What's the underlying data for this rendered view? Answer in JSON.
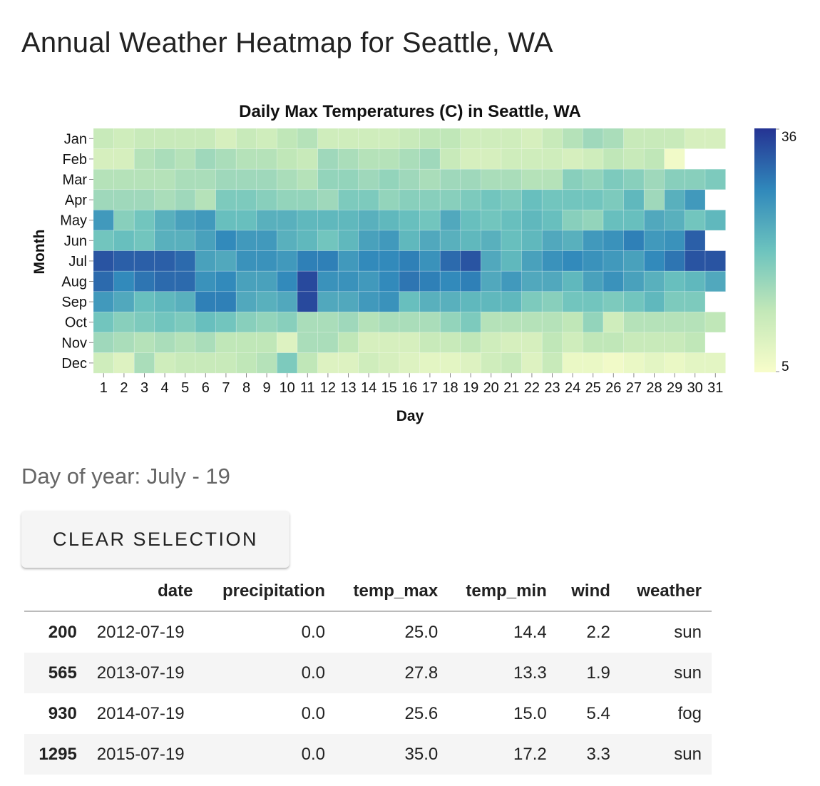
{
  "page": {
    "title": "Annual Weather Heatmap for Seattle, WA",
    "selection_label": "Day of year: July - 19",
    "clear_button_label": "CLEAR SELECTION"
  },
  "chart_data": {
    "type": "heatmap",
    "title": "Daily Max Temperatures (C) in Seattle, WA",
    "xlabel": "Day",
    "ylabel": "Month",
    "x": [
      "1",
      "2",
      "3",
      "4",
      "5",
      "6",
      "7",
      "8",
      "9",
      "10",
      "11",
      "12",
      "13",
      "14",
      "15",
      "16",
      "17",
      "18",
      "19",
      "20",
      "21",
      "22",
      "23",
      "24",
      "25",
      "26",
      "27",
      "28",
      "29",
      "30",
      "31"
    ],
    "y": [
      "Jan",
      "Feb",
      "Mar",
      "Apr",
      "May",
      "Jun",
      "Jul",
      "Aug",
      "Sep",
      "Oct",
      "Nov",
      "Dec"
    ],
    "values": [
      [
        12,
        11,
        12,
        12,
        12,
        12,
        10,
        12,
        11,
        13,
        14,
        11,
        11,
        11,
        11,
        12,
        13,
        13,
        11,
        11,
        11,
        10,
        12,
        14,
        16,
        15,
        12,
        12,
        12,
        10,
        10
      ],
      [
        10,
        10,
        14,
        15,
        14,
        16,
        15,
        14,
        14,
        13,
        12,
        16,
        15,
        14,
        14,
        15,
        16,
        12,
        10,
        10,
        11,
        11,
        11,
        10,
        11,
        13,
        12,
        13,
        6,
        null,
        null
      ],
      [
        14,
        14,
        14,
        14,
        15,
        15,
        16,
        16,
        16,
        15,
        14,
        17,
        17,
        16,
        17,
        16,
        15,
        16,
        16,
        15,
        15,
        14,
        14,
        18,
        17,
        19,
        18,
        16,
        18,
        18,
        19
      ],
      [
        16,
        16,
        16,
        15,
        16,
        14,
        19,
        19,
        18,
        17,
        17,
        16,
        19,
        19,
        17,
        18,
        18,
        18,
        19,
        20,
        19,
        21,
        20,
        20,
        20,
        19,
        22,
        16,
        23,
        26,
        null
      ],
      [
        26,
        18,
        20,
        23,
        25,
        26,
        21,
        21,
        23,
        23,
        22,
        22,
        22,
        23,
        22,
        21,
        20,
        24,
        21,
        20,
        21,
        22,
        21,
        18,
        17,
        21,
        21,
        24,
        23,
        20,
        22
      ],
      [
        20,
        21,
        20,
        23,
        23,
        25,
        28,
        26,
        26,
        23,
        22,
        20,
        22,
        25,
        26,
        22,
        24,
        23,
        22,
        23,
        21,
        22,
        24,
        23,
        26,
        27,
        29,
        26,
        27,
        32,
        null
      ],
      [
        33,
        32,
        32,
        32,
        31,
        25,
        24,
        27,
        27,
        26,
        29,
        29,
        26,
        28,
        28,
        29,
        27,
        31,
        33,
        24,
        22,
        25,
        27,
        28,
        27,
        26,
        25,
        28,
        30,
        33,
        33
      ],
      [
        31,
        28,
        30,
        31,
        31,
        27,
        28,
        25,
        25,
        28,
        34,
        27,
        27,
        26,
        28,
        30,
        29,
        28,
        29,
        24,
        26,
        24,
        24,
        22,
        25,
        27,
        25,
        23,
        21,
        22,
        24
      ],
      [
        26,
        24,
        21,
        22,
        23,
        29,
        29,
        24,
        23,
        24,
        34,
        24,
        24,
        26,
        27,
        21,
        23,
        23,
        22,
        22,
        22,
        19,
        18,
        20,
        20,
        19,
        20,
        22,
        19,
        19,
        null
      ],
      [
        20,
        18,
        19,
        20,
        19,
        21,
        20,
        18,
        17,
        18,
        15,
        15,
        16,
        14,
        15,
        15,
        15,
        17,
        19,
        14,
        14,
        14,
        14,
        13,
        17,
        11,
        14,
        14,
        14,
        14,
        13
      ],
      [
        16,
        15,
        14,
        15,
        14,
        15,
        13,
        13,
        13,
        9,
        15,
        15,
        13,
        10,
        10,
        10,
        12,
        12,
        13,
        11,
        10,
        10,
        13,
        11,
        13,
        13,
        12,
        12,
        12,
        13,
        null
      ],
      [
        11,
        9,
        15,
        11,
        12,
        12,
        12,
        13,
        14,
        19,
        13,
        9,
        9,
        11,
        10,
        9,
        8,
        8,
        9,
        11,
        12,
        9,
        12,
        7,
        7,
        6,
        7,
        8,
        7,
        8,
        8
      ]
    ],
    "color_scale": {
      "domain": [
        5,
        36
      ],
      "low_color": "#f8fdca",
      "high_color": "#253393",
      "legend_position": "right"
    },
    "legend_labels": [
      "36",
      "5"
    ]
  },
  "table": {
    "columns": [
      "",
      "date",
      "precipitation",
      "temp_max",
      "temp_min",
      "wind",
      "weather"
    ],
    "rows": [
      [
        "200",
        "2012-07-19",
        "0.0",
        "25.0",
        "14.4",
        "2.2",
        "sun"
      ],
      [
        "565",
        "2013-07-19",
        "0.0",
        "27.8",
        "13.3",
        "1.9",
        "sun"
      ],
      [
        "930",
        "2014-07-19",
        "0.0",
        "25.6",
        "15.0",
        "5.4",
        "fog"
      ],
      [
        "1295",
        "2015-07-19",
        "0.0",
        "35.0",
        "17.2",
        "3.3",
        "sun"
      ]
    ]
  }
}
